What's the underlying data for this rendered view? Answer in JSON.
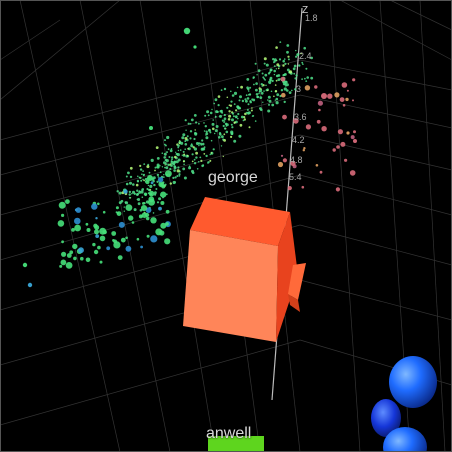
{
  "scene": {
    "labels": {
      "george": "george",
      "anwell": "anwell"
    },
    "axis": {
      "name": "Z",
      "ticks": [
        "1.8",
        "2.4",
        "3",
        "3.6",
        "4.2",
        "4.8",
        "5.4"
      ]
    },
    "colors": {
      "background": "#000000",
      "grid": "#3a3a3a",
      "cube_front": "#ff8559",
      "cube_top": "#ff5a2e",
      "cube_side": "#e8431e",
      "point_green": "#46e07a",
      "point_blue": "#2f6cff",
      "green_block": "#5ed51e"
    }
  }
}
